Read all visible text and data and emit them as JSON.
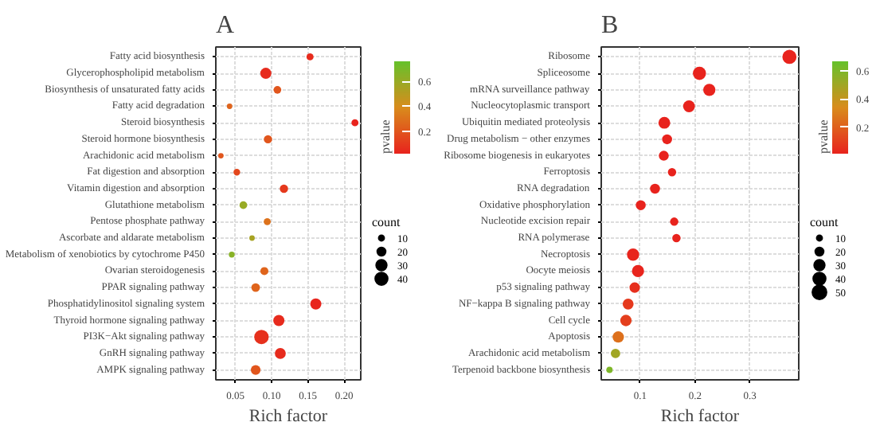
{
  "chart_data": [
    {
      "type": "bubble",
      "orientation": "horizontal",
      "title": "A",
      "xlabel": "Rich factor",
      "clabel": "pvalue",
      "legend_title": "count",
      "marker": "circle",
      "grid": true,
      "categories": [
        "Fatty acid biosynthesis",
        "Glycerophospholipid metabolism",
        "Biosynthesis of unsaturated fatty acids",
        "Fatty acid degradation",
        "Steroid biosynthesis",
        "Steroid hormone biosynthesis",
        "Arachidonic acid metabolism",
        "Fat digestion and absorption",
        "Vitamin digestion and absorption",
        "Glutathione metabolism",
        "Pentose phosphate pathway",
        "Ascorbate and aldarate metabolism",
        "Metabolism of xenobiotics by cytochrome P450",
        "Ovarian steroidogenesis",
        "PPAR signaling pathway",
        "Phosphatidylinositol signaling system",
        "Thyroid hormone signaling pathway",
        "PI3K−Akt signaling pathway",
        "GnRH signaling pathway",
        "AMPK signaling pathway"
      ],
      "values": [
        0.153,
        0.092,
        0.108,
        0.042,
        0.215,
        0.095,
        0.03,
        0.052,
        0.117,
        0.061,
        0.094,
        0.073,
        0.045,
        0.09,
        0.078,
        0.161,
        0.11,
        0.086,
        0.112,
        0.078
      ],
      "sizes": [
        10,
        25,
        12,
        6,
        10,
        14,
        6,
        9,
        14,
        12,
        10,
        6,
        7,
        13,
        15,
        25,
        25,
        42,
        24,
        19
      ],
      "cvalues": [
        0.05,
        0.05,
        0.2,
        0.25,
        0.02,
        0.2,
        0.2,
        0.15,
        0.1,
        0.6,
        0.3,
        0.55,
        0.65,
        0.25,
        0.25,
        0.03,
        0.05,
        0.07,
        0.05,
        0.2
      ],
      "size_legend": [
        10,
        20,
        30,
        40
      ],
      "xlim": [
        0.023,
        0.223
      ],
      "xticks": [
        {
          "value": 0.05,
          "label": "0.05"
        },
        {
          "value": 0.1,
          "label": "0.10"
        },
        {
          "value": 0.15,
          "label": "0.15"
        },
        {
          "value": 0.2,
          "label": "0.20"
        }
      ],
      "clim": [
        0.02,
        0.76
      ],
      "cticks": [
        0.2,
        0.4,
        0.6
      ]
    },
    {
      "type": "bubble",
      "orientation": "horizontal",
      "title": "B",
      "xlabel": "Rich factor",
      "clabel": "pvalue",
      "legend_title": "count",
      "marker": "circle",
      "grid": true,
      "categories": [
        "Ribosome",
        "Spliceosome",
        "mRNA surveillance pathway",
        "Nucleocytoplasmic transport",
        "Ubiquitin mediated proteolysis",
        "Drug metabolism − other enzymes",
        "Ribosome biogenesis in eukaryotes",
        "Ferroptosis",
        "RNA degradation",
        "Oxidative phosphorylation",
        "Nucleotide excision repair",
        "RNA polymerase",
        "Necroptosis",
        "Oocyte meiosis",
        "p53 signaling pathway",
        "NF−kappa B signaling pathway",
        "Cell cycle",
        "Apoptosis",
        "Arachidonic acid metabolism",
        "Terpenoid backbone biosynthesis"
      ],
      "values": [
        0.372,
        0.208,
        0.226,
        0.189,
        0.144,
        0.149,
        0.143,
        0.158,
        0.127,
        0.101,
        0.162,
        0.166,
        0.087,
        0.096,
        0.09,
        0.078,
        0.074,
        0.06,
        0.055,
        0.044
      ],
      "sizes": [
        40,
        35,
        30,
        28,
        28,
        20,
        20,
        14,
        20,
        20,
        14,
        14,
        30,
        30,
        22,
        24,
        26,
        26,
        18,
        8
      ],
      "cvalues": [
        0.01,
        0.01,
        0.01,
        0.01,
        0.01,
        0.01,
        0.01,
        0.01,
        0.01,
        0.01,
        0.01,
        0.01,
        0.02,
        0.02,
        0.05,
        0.08,
        0.1,
        0.25,
        0.5,
        0.6
      ],
      "size_legend": [
        10,
        20,
        30,
        40,
        50
      ],
      "xlim": [
        0.029,
        0.389
      ],
      "xticks": [
        0.1,
        0.2,
        0.3
      ],
      "clim": [
        0.01,
        0.67
      ],
      "cticks": [
        0.2,
        0.4,
        0.6
      ]
    }
  ]
}
